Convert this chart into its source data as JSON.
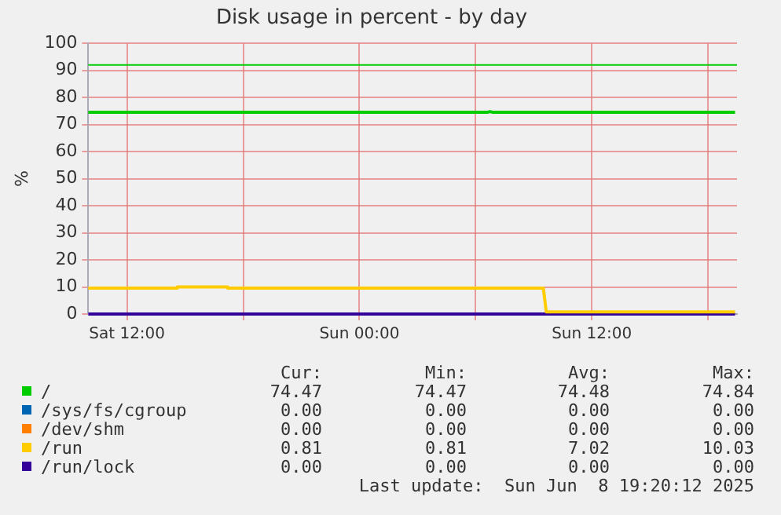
{
  "chart_data": {
    "type": "line",
    "title": "Disk usage in percent - by day",
    "ylabel": "%",
    "xlim": [
      "2025-06-07T10:00",
      "2025-06-08T19:30"
    ],
    "xticks": [
      {
        "value": "2025-06-07T12:00",
        "label": "Sat 12:00"
      },
      {
        "value": "2025-06-07T18:00",
        "label": null
      },
      {
        "value": "2025-06-08T00:00",
        "label": "Sun 00:00"
      },
      {
        "value": "2025-06-08T06:00",
        "label": null
      },
      {
        "value": "2025-06-08T12:00",
        "label": "Sun 12:00"
      },
      {
        "value": "2025-06-08T18:00",
        "label": null
      }
    ],
    "ylim": [
      0,
      100
    ],
    "yticks": [
      0,
      10,
      20,
      30,
      40,
      50,
      60,
      70,
      80,
      90,
      100
    ],
    "grid": true,
    "legend": "bottom",
    "marker": "none",
    "line_style": "solid",
    "ref_lines": [
      {
        "axis": "y",
        "value": 92,
        "color": "#00cc00"
      }
    ],
    "series": [
      {
        "name": "/",
        "color": "#00cc00",
        "x": [
          "2025-06-07T10:00",
          "2025-06-08T06:36",
          "2025-06-08T06:45",
          "2025-06-08T06:54",
          "2025-06-08T19:24"
        ],
        "values": [
          74.5,
          74.5,
          74.8,
          74.5,
          74.5
        ]
      },
      {
        "name": "/sys/fs/cgroup",
        "color": "#0066b3"
      },
      {
        "name": "/dev/shm",
        "color": "#ff8000"
      },
      {
        "name": "/run",
        "color": "#ffcc00",
        "x": [
          "2025-06-07T10:00",
          "2025-06-07T14:36",
          "2025-06-07T14:36",
          "2025-06-07T17:12",
          "2025-06-07T17:12",
          "2025-06-08T09:30",
          "2025-06-08T09:39",
          "2025-06-08T19:24"
        ],
        "values": [
          9.6,
          9.6,
          10.0,
          10.0,
          9.6,
          9.6,
          0.8,
          0.8
        ]
      },
      {
        "name": "/run/lock",
        "color": "#330099",
        "x": [
          "2025-06-07T10:00",
          "2025-06-08T19:24"
        ],
        "values": [
          0,
          0
        ]
      }
    ],
    "annotations": [
      "Cur:",
      "Min:",
      "Avg:",
      "Max:",
      "74.47",
      "74.47",
      "74.48",
      "74.84",
      "0.00",
      "0.00",
      "0.00",
      "0.00",
      "0.00",
      "0.00",
      "0.00",
      "0.00",
      "0.81",
      "0.81",
      "7.02",
      "10.03",
      "0.00",
      "0.00",
      "0.00",
      "0.00",
      "Last update:  Sun Jun  8 19:20:12 2025"
    ]
  }
}
